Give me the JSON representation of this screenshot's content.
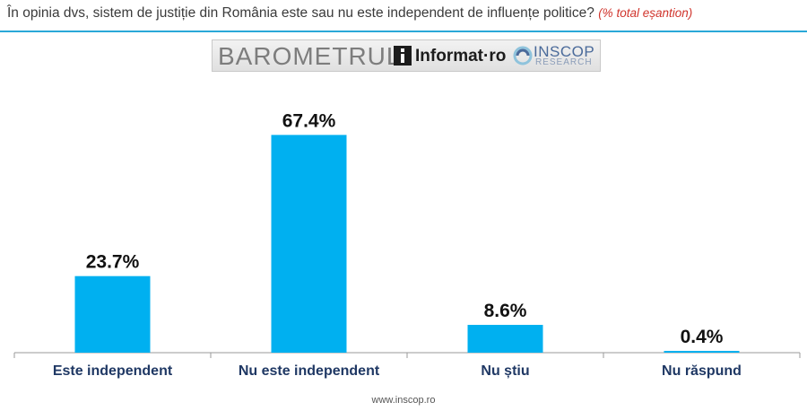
{
  "header": {
    "question": "În opinia dvs, sistem de justiție din România este sau nu este independent de influențe politice?",
    "note": "(% total eșantion)"
  },
  "logos": {
    "barometru": "BAROMETRUL",
    "informat": "Informat·ro",
    "inscop": "INSCOP",
    "inscop_sub": "RESEARCH"
  },
  "footer": {
    "url": "www.inscop.ro"
  },
  "colors": {
    "bar": "#00b0f0",
    "accent": "#2aa8d8",
    "label": "#1f3864",
    "note": "#d0342c"
  },
  "chart_data": {
    "type": "bar",
    "categories": [
      "Este independent",
      "Nu este independent",
      "Nu știu",
      "Nu răspund"
    ],
    "values": [
      23.7,
      67.4,
      8.6,
      0.4
    ],
    "value_labels": [
      "23.7%",
      "67.4%",
      "8.6%",
      "0.4%"
    ],
    "unit": "%",
    "ylim": [
      0,
      100
    ],
    "grid": false,
    "legend": "none"
  }
}
